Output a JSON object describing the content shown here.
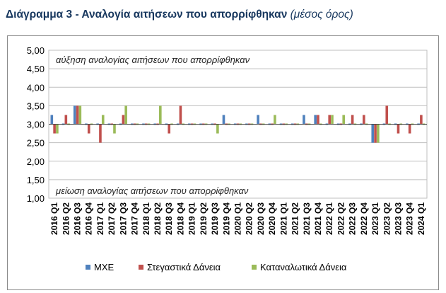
{
  "title": {
    "main": "Διάγραμμα 3 - Αναλογία αιτήσεων που απορρίφθηκαν",
    "sub": "(μέσος όρος)"
  },
  "chart_data": {
    "type": "bar",
    "ylim": [
      1.0,
      5.0
    ],
    "yticks": [
      "5,00",
      "4,50",
      "4,00",
      "3,50",
      "3,00",
      "2,50",
      "2,00",
      "1,50",
      "1,00"
    ],
    "grid": true,
    "legend_position": "bottom",
    "annotations": {
      "top": "αύξηση αναλογίας αιτήσεων που απορρίφθηκαν",
      "bottom": "μείωση αναλογίας αιτήσεων που απορρίφθηκαν"
    },
    "categories": [
      "2016 Q1",
      "2016 Q2",
      "2016 Q3",
      "2016 Q4",
      "2017 Q1",
      "2017 Q2",
      "2017 Q3",
      "2017 Q4",
      "2018 Q1",
      "2018 Q2",
      "2018 Q3",
      "2018 Q4",
      "2019 Q1",
      "2019 Q2",
      "2019 Q3",
      "2019 Q4",
      "2020 Q1",
      "2020 Q2",
      "2020 Q3",
      "2020 Q4",
      "2021 Q1",
      "2021 Q2",
      "2021 Q3",
      "2021 Q4",
      "2022 Q1",
      "2022 Q2",
      "2022 Q3",
      "2022 Q4",
      "2023 Q1",
      "2023 Q2",
      "2023 Q3",
      "2023 Q4",
      "2024 Q1"
    ],
    "series": [
      {
        "name": "ΜΧΕ",
        "color": "#4F81BD",
        "values": [
          3.25,
          3.0,
          3.5,
          3.0,
          3.0,
          3.0,
          3.0,
          3.0,
          3.0,
          3.0,
          3.0,
          3.0,
          3.0,
          3.0,
          3.0,
          3.25,
          3.0,
          3.0,
          3.25,
          3.0,
          3.0,
          3.0,
          3.25,
          3.25,
          3.0,
          3.0,
          3.0,
          3.0,
          2.5,
          3.0,
          3.0,
          3.0,
          3.0
        ]
      },
      {
        "name": "Στεγαστικά Δάνεια",
        "color": "#C0504D",
        "values": [
          2.75,
          3.25,
          3.5,
          2.75,
          2.5,
          3.0,
          3.25,
          3.0,
          3.0,
          3.0,
          2.75,
          3.5,
          3.0,
          3.0,
          3.0,
          3.0,
          3.0,
          3.0,
          3.0,
          3.0,
          3.0,
          3.0,
          3.0,
          3.25,
          3.25,
          3.0,
          3.25,
          3.25,
          2.5,
          3.5,
          2.75,
          2.75,
          3.25
        ]
      },
      {
        "name": "Καταναλωτικά Δάνεια",
        "color": "#9BBB59",
        "values": [
          2.75,
          3.0,
          3.5,
          3.0,
          3.25,
          2.75,
          3.5,
          3.0,
          3.0,
          3.5,
          3.0,
          3.0,
          3.0,
          3.0,
          2.75,
          3.0,
          3.0,
          3.0,
          3.0,
          3.25,
          3.0,
          3.0,
          3.0,
          3.0,
          3.25,
          3.25,
          3.0,
          3.0,
          2.5,
          3.0,
          3.0,
          3.0,
          3.0
        ]
      }
    ]
  }
}
